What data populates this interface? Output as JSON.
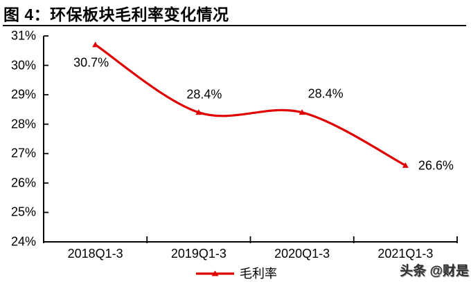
{
  "figure": {
    "title": "图 4：环保板块毛利率变化情况",
    "watermark": "头条 @财是"
  },
  "legend": {
    "label": "毛利率"
  },
  "chart_data": {
    "type": "line",
    "title": "图 4：环保板块毛利率变化情况",
    "categories": [
      "2018Q1-3",
      "2019Q1-3",
      "2020Q1-3",
      "2021Q1-3"
    ],
    "series": [
      {
        "name": "毛利率",
        "values": [
          30.7,
          28.4,
          28.4,
          26.6
        ]
      }
    ],
    "data_labels": [
      "30.7%",
      "28.4%",
      "28.4%",
      "26.6%"
    ],
    "y_ticks": [
      "31%",
      "30%",
      "29%",
      "28%",
      "27%",
      "26%",
      "25%",
      "24%"
    ],
    "ylim": [
      24,
      31
    ],
    "xlabel": "",
    "ylabel": "",
    "grid": false,
    "smooth": true,
    "marker": "triangle",
    "legend_position": "bottom",
    "line_color": "#e00000",
    "axis_color": "#000000"
  }
}
